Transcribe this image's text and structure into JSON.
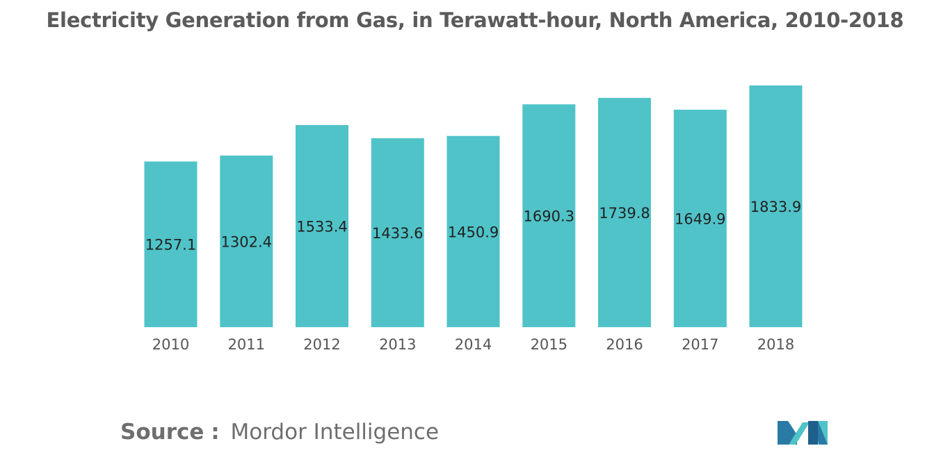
{
  "title": "Electricity Generation from Gas, in Terawatt-hour, North America, 2010-2018",
  "source": {
    "label": "Source",
    "separator": ":",
    "name": "Mordor Intelligence"
  },
  "logo": {
    "icon": "mordor-intelligence-logo-icon",
    "colors": [
      "#1f5f8b",
      "#4fc3c8"
    ]
  },
  "chart_data": {
    "type": "bar",
    "title": "Electricity Generation from Gas, in Terawatt-hour, North America, 2010-2018",
    "xlabel": "",
    "ylabel": "",
    "categories": [
      "2010",
      "2011",
      "2012",
      "2013",
      "2014",
      "2015",
      "2016",
      "2017",
      "2018"
    ],
    "values": [
      1257.1,
      1302.4,
      1533.4,
      1433.6,
      1450.9,
      1690.3,
      1739.8,
      1649.9,
      1833.9
    ],
    "value_labels": [
      "1257.1",
      "1302.4",
      "1533.4",
      "1433.6",
      "1450.9",
      "1690.3",
      "1739.8",
      "1649.9",
      "1833.9"
    ],
    "ylim": [
      0,
      1833.9
    ],
    "grid": false,
    "legend": "none",
    "bar_color": "#4fc3c8"
  }
}
